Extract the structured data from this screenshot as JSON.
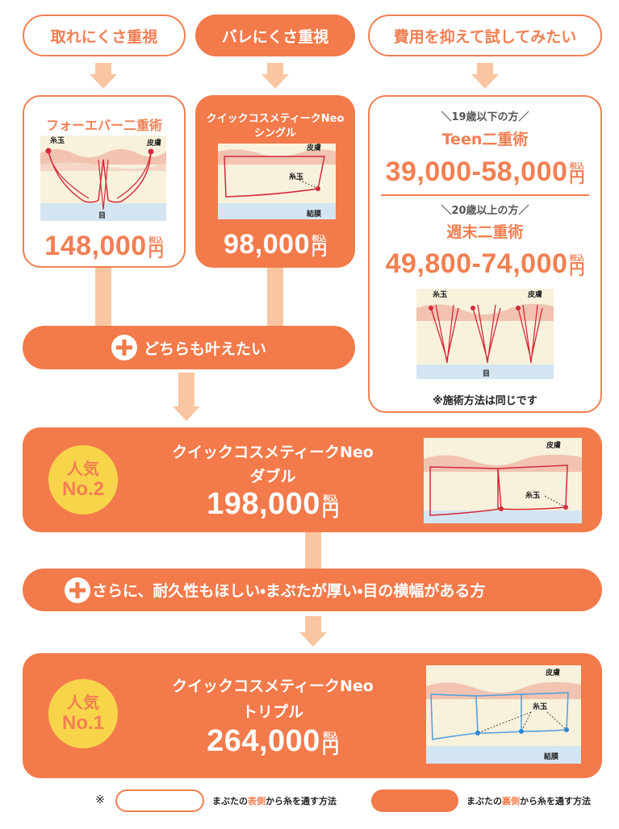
{
  "top_options": [
    "取れにくさ重視",
    "バレにくさ重視",
    "費用を抑えて試してみたい"
  ],
  "forever": {
    "title": "フォーエバー二重術",
    "labels": {
      "knot": "糸玉",
      "skin": "皮膚",
      "eye": "目"
    },
    "price": "148,000",
    "tax": "税込",
    "yen": "円"
  },
  "single": {
    "title": "クイックコスメティークNeo",
    "variant": "シングル",
    "labels": {
      "skin": "皮膚",
      "knot": "糸玉",
      "conjunctiva": "結膜"
    },
    "price": "98,000",
    "tax": "税込",
    "yen": "円"
  },
  "budget": {
    "plans": [
      {
        "audience": "＼19歳以下の方／",
        "name": "Teen二重術",
        "price": "39,000-58,000",
        "tax": "税込",
        "yen": "円"
      },
      {
        "audience": "＼20歳以上の方／",
        "name": "週末二重術",
        "price": "49,800-74,000",
        "tax": "税込",
        "yen": "円"
      }
    ],
    "labels": {
      "knot": "糸玉",
      "skin": "皮膚",
      "eye": "目"
    },
    "note": "※施術方法は同じです"
  },
  "connector_1": "どちらも叶えたい",
  "double": {
    "badge": {
      "line1": "人気",
      "line2": "No.2"
    },
    "title": "クイックコスメティークNeo",
    "variant": "ダブル",
    "price": "198,000",
    "tax": "税込",
    "yen": "円",
    "labels": {
      "skin": "皮膚",
      "knot": "糸玉"
    }
  },
  "connector_2": "さらに、耐久性もほしい・まぶたが厚い・目の横幅がある方",
  "triple": {
    "badge": {
      "line1": "人気",
      "line2": "No.1"
    },
    "title": "クイックコスメティークNeo",
    "variant": "トリプル",
    "price": "264,000",
    "tax": "税込",
    "yen": "円",
    "labels": {
      "skin": "皮膚",
      "knot": "糸玉",
      "conjunctiva": "結膜"
    }
  },
  "legend": {
    "mark": "※",
    "outer": {
      "prefix": "まぶたの",
      "side": "表側",
      "suffix": "から糸を通す方法"
    },
    "inner": {
      "prefix": "まぶたの",
      "side": "裏側",
      "suffix": "から糸を通す方法"
    }
  }
}
